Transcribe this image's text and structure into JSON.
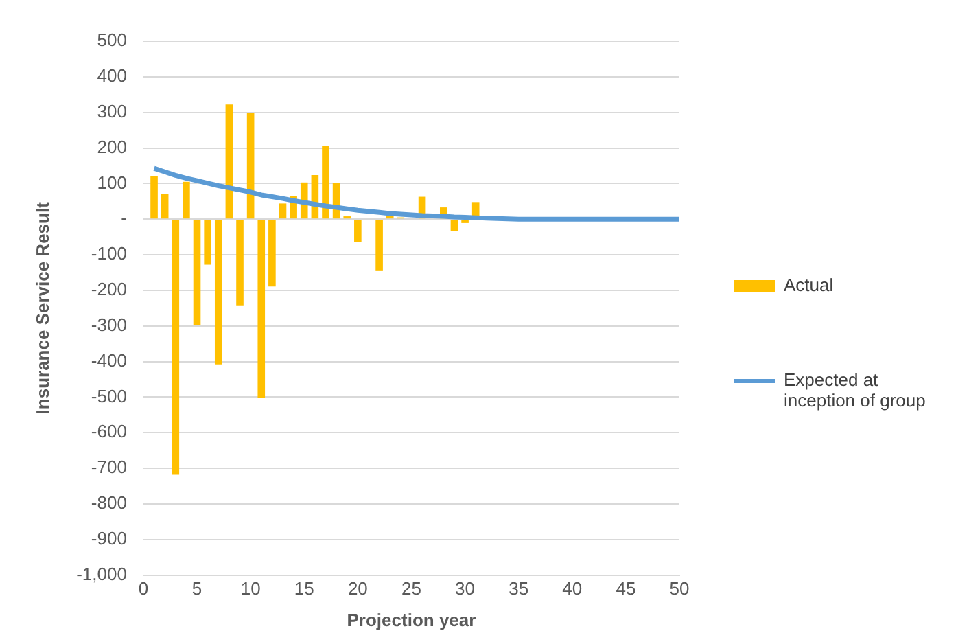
{
  "chart_data": {
    "type": "bar",
    "xlabel": "Projection year",
    "ylabel": "Insurance Service Result",
    "x": [
      1,
      2,
      3,
      4,
      5,
      6,
      7,
      8,
      9,
      10,
      11,
      12,
      13,
      14,
      15,
      16,
      17,
      18,
      19,
      20,
      21,
      22,
      23,
      24,
      25,
      26,
      27,
      28,
      29,
      30,
      31,
      32,
      33,
      34,
      35,
      36,
      37,
      38,
      39,
      40,
      41,
      42,
      43,
      44,
      45,
      46,
      47,
      48,
      49,
      50
    ],
    "series": [
      {
        "name": "Actual",
        "color": "#ffc000",
        "values": [
          122,
          71,
          -718,
          105,
          -297,
          -128,
          -408,
          322,
          -242,
          299,
          -503,
          -189,
          44,
          65,
          103,
          124,
          207,
          101,
          8,
          -64,
          null,
          -144,
          10,
          5,
          null,
          63,
          null,
          33,
          -33,
          -11,
          48,
          null,
          null,
          null,
          null,
          null,
          null,
          null,
          null,
          null,
          null,
          null,
          null,
          null,
          null,
          null,
          null,
          null,
          null,
          null
        ]
      },
      {
        "name": "Expected at inception of group",
        "type": "line",
        "color": "#5b9bd5",
        "values": [
          143,
          133,
          123,
          115,
          108,
          101,
          94,
          88,
          82,
          76,
          68,
          63,
          58,
          52,
          47,
          42,
          37,
          33,
          29,
          25,
          22,
          19,
          16,
          14,
          12,
          10,
          9,
          8,
          6,
          5,
          4,
          3,
          2,
          1,
          0,
          0,
          0,
          0,
          0,
          0,
          0,
          0,
          0,
          0,
          0,
          0,
          0,
          0,
          0,
          0
        ]
      }
    ],
    "xlim": [
      0,
      50
    ],
    "xticks": [
      0,
      5,
      10,
      15,
      20,
      25,
      30,
      35,
      40,
      45,
      50
    ],
    "ylim": [
      -1000,
      500
    ],
    "yticks": [
      {
        "value": -1000,
        "label": "-1,000"
      },
      -900,
      -800,
      -700,
      -600,
      -500,
      -400,
      -300,
      -200,
      -100,
      {
        "value": 0,
        "label": "-"
      },
      100,
      200,
      300,
      400,
      500
    ],
    "grid": "y",
    "legend": "right",
    "marker": "none",
    "line_style": "solid"
  }
}
